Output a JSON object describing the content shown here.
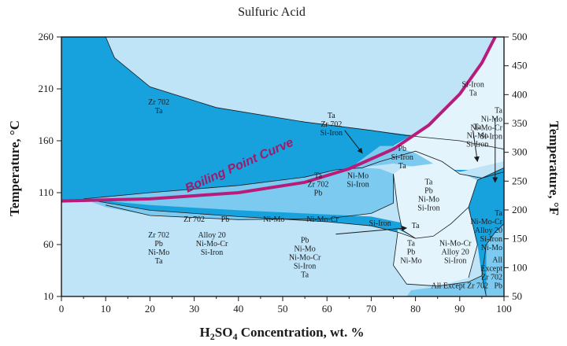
{
  "chart_data": {
    "type": "area",
    "title": "Sulfuric Acid",
    "xlabel": "H2SO4 Concentration, wt. %",
    "ylabel_left": "Temperature, °C",
    "ylabel_right": "Temperature, °F",
    "xlim": [
      0,
      100
    ],
    "ylim_c": [
      10,
      260
    ],
    "ylim_f": [
      50,
      500
    ],
    "x_ticks": [
      "0",
      "10",
      "20",
      "30",
      "40",
      "50",
      "60",
      "70",
      "80",
      "90",
      "100"
    ],
    "yc_ticks": [
      "10",
      "60",
      "110",
      "160",
      "210",
      "260"
    ],
    "yf_ticks": [
      "50",
      "100",
      "150",
      "200",
      "250",
      "300",
      "350",
      "400",
      "450",
      "500"
    ],
    "boiling_point_label": "Boiling Point Curve",
    "boiling_point_curve": [
      [
        0,
        102
      ],
      [
        20,
        104
      ],
      [
        40,
        110
      ],
      [
        55,
        120
      ],
      [
        65,
        133
      ],
      [
        75,
        152
      ],
      [
        83,
        175
      ],
      [
        90,
        205
      ],
      [
        95,
        235
      ],
      [
        98,
        260
      ]
    ],
    "colors": {
      "light_blue": "#bfe3f7",
      "medium_blue": "#7ccaef",
      "deep_blue": "#18a2dd",
      "pale_blue": "#e3f4fc",
      "boiling_curve": "#b81c7a"
    },
    "region_labels": [
      {
        "x": 22,
        "y": 195,
        "lines": [
          "Zr 702",
          "Ta"
        ]
      },
      {
        "x": 30,
        "y": 82,
        "lines": [
          "Zr 702"
        ]
      },
      {
        "x": 37,
        "y": 82,
        "lines": [
          "Pb"
        ]
      },
      {
        "x": 48,
        "y": 82,
        "lines": [
          "Ni-Mo"
        ]
      },
      {
        "x": 59,
        "y": 82,
        "lines": [
          "Ni-Mo-Cr"
        ]
      },
      {
        "x": 72,
        "y": 78,
        "lines": [
          "Si-Iron"
        ]
      },
      {
        "x": 80,
        "y": 76,
        "lines": [
          "Ta"
        ]
      },
      {
        "x": 22,
        "y": 67,
        "lines": [
          "Zr 702",
          "Pb",
          "Ni-Mo",
          "Ta"
        ]
      },
      {
        "x": 34,
        "y": 67,
        "lines": [
          "Alloy 20",
          "Ni-Mo-Cr",
          "Si-Iron"
        ]
      },
      {
        "x": 58,
        "y": 124,
        "lines": [
          "Ta",
          "Zr 702",
          "Pb"
        ]
      },
      {
        "x": 67,
        "y": 124,
        "lines": [
          "Ni-Mo",
          "Si-Iron"
        ]
      },
      {
        "x": 61,
        "y": 182,
        "lines": [
          "Ta",
          "Zr 702",
          "Si-Iron"
        ]
      },
      {
        "x": 77,
        "y": 150,
        "lines": [
          "Pb",
          "Si-Iron",
          "Ta"
        ]
      },
      {
        "x": 83,
        "y": 118,
        "lines": [
          "Ta",
          "Pb",
          "Ni-Mo",
          "Si-Iron"
        ]
      },
      {
        "x": 55,
        "y": 62,
        "lines": [
          "Pb",
          "Ni-Mo",
          "Ni-Mo-Cr",
          "Si-Iron",
          "Ta"
        ]
      },
      {
        "x": 79,
        "y": 59,
        "lines": [
          "Ta",
          "Pb",
          "Ni-Mo"
        ]
      },
      {
        "x": 89,
        "y": 59,
        "lines": [
          "Ni-Mo-Cr",
          "Alloy 20",
          "Si-Iron"
        ]
      },
      {
        "x": 90,
        "y": 18,
        "lines": [
          "All Except Zr 702"
        ]
      },
      {
        "x": 93,
        "y": 212,
        "lines": [
          "Si-Iron",
          "Ta"
        ]
      },
      {
        "x": 100,
        "y": 187,
        "lines": [
          "Ta",
          "Ni-Mo",
          "Ni-Mo-Cr",
          "Si-Iron"
        ]
      },
      {
        "x": 94,
        "y": 171,
        "lines": [
          "Ta",
          "Ni-Mo",
          "Si-Iron"
        ]
      },
      {
        "x": 102,
        "y": 88,
        "lines": [
          "Ta",
          "Ni-Mo-Cr",
          "Alloy 20",
          "Si-Iron",
          "Ni-Mo"
        ]
      },
      {
        "x": 103,
        "y": 43,
        "lines": [
          "All",
          "Except",
          "Zr 702",
          "Pb"
        ]
      }
    ]
  }
}
